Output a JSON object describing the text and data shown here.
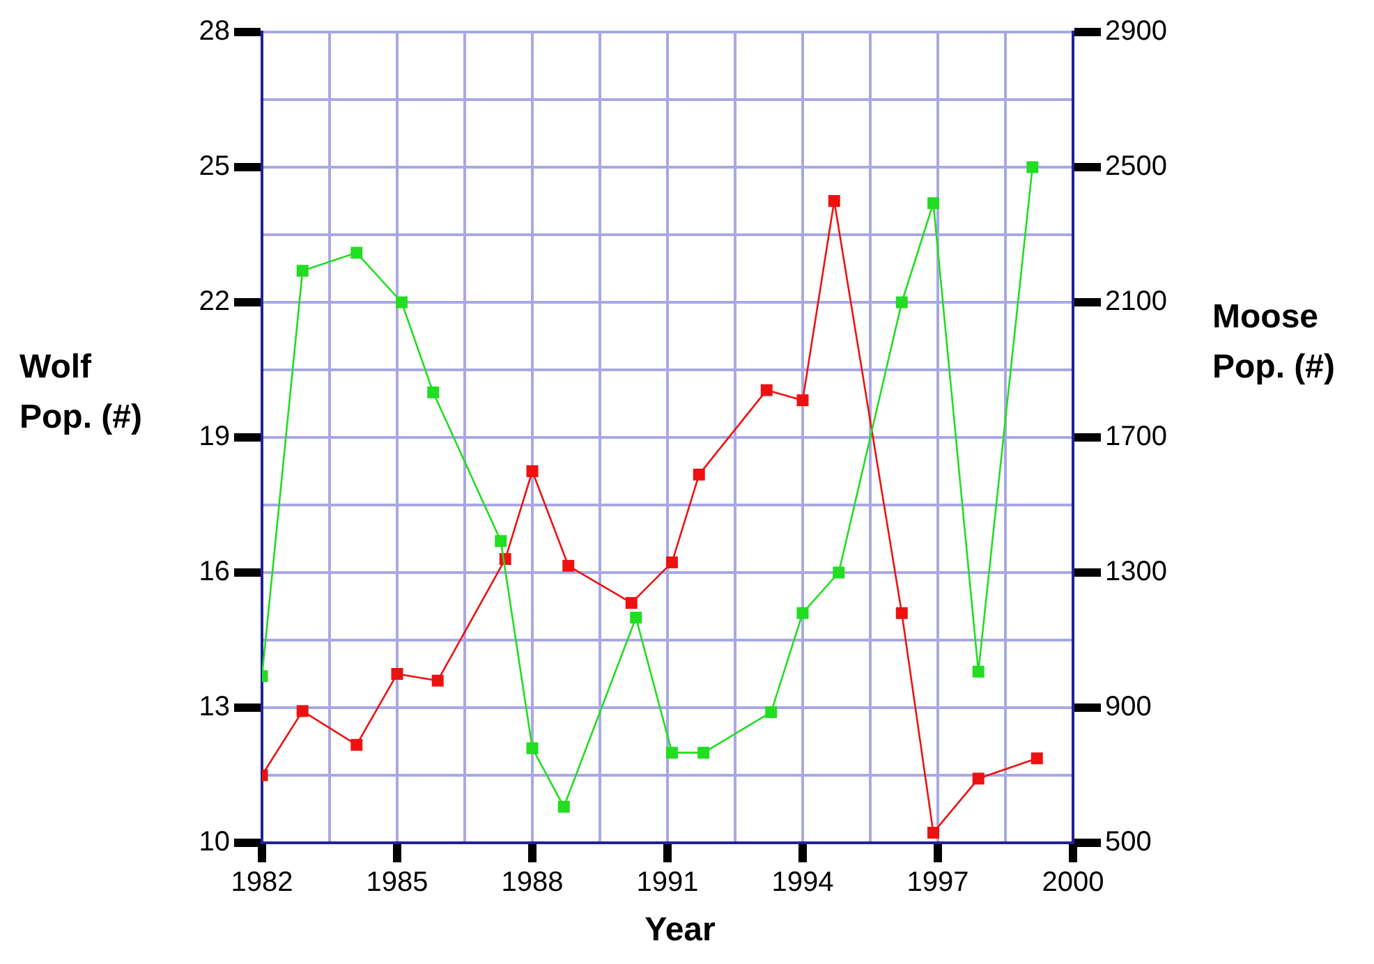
{
  "chart_data": {
    "type": "line",
    "xlabel": "Year",
    "ylabel": "Wolf Pop. (#)",
    "y2label": "Moose Pop. (#)",
    "marker": "square",
    "grid": true,
    "xlim": [
      1982,
      2000
    ],
    "xticks": [
      1982,
      {
        "value": 1983.5,
        "label": null
      },
      1985,
      {
        "value": 1986.5,
        "label": null
      },
      1988,
      {
        "value": 1989.5,
        "label": null
      },
      1991,
      {
        "value": 1992.5,
        "label": null
      },
      1994,
      {
        "value": 1995.5,
        "label": null
      },
      1997,
      {
        "value": 1998.5,
        "label": null
      },
      2000
    ],
    "ylim": [
      10,
      28
    ],
    "yticks": [
      10,
      {
        "value": 11.5,
        "label": null
      },
      13,
      {
        "value": 14.5,
        "label": null
      },
      16,
      {
        "value": 17.5,
        "label": null
      },
      19,
      {
        "value": 20.5,
        "label": null
      },
      22,
      {
        "value": 23.5,
        "label": null
      },
      25,
      {
        "value": 26.5,
        "label": null
      },
      28
    ],
    "y2lim": [
      500,
      2900
    ],
    "y2ticks": [
      500,
      900,
      1300,
      1700,
      2100,
      2500,
      2900
    ],
    "series": [
      {
        "color": "#22dd22",
        "x": [
          1982,
          1982.9,
          1984.1,
          1985.1,
          1985.8,
          1987.3,
          1988,
          1988.7,
          1990.3,
          1991.1,
          1991.8,
          1993.3,
          1994,
          1994.8,
          1996.2,
          1996.9,
          1997.9,
          1999.1
        ],
        "values": [
          13.7,
          22.7,
          23.1,
          22,
          20,
          16.7,
          12.1,
          10.8,
          15,
          12,
          12,
          12.9,
          15.1,
          16,
          22,
          24.2,
          13.8,
          25
        ]
      },
      {
        "color": "#ee1111",
        "axis": "y2",
        "x": [
          1982,
          1982.9,
          1984.1,
          1985,
          1985.9,
          1987.4,
          1988,
          1988.8,
          1990.2,
          1991.1,
          1991.7,
          1993.2,
          1994,
          1994.7,
          1996.2,
          1996.9,
          1997.9,
          1999.2
        ],
        "values": [
          700,
          890,
          790,
          1000,
          980,
          1340,
          1600,
          1320,
          1210,
          1330,
          1590,
          1840,
          1810,
          2400,
          1180,
          530,
          690,
          750
        ]
      }
    ]
  }
}
